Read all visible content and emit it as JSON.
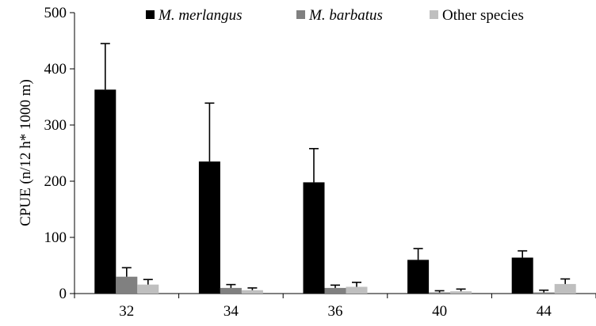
{
  "chart_data": {
    "type": "bar",
    "title": "",
    "xlabel": "",
    "ylabel": "CPUE (n/12 h* 1000 m)",
    "categories": [
      "32",
      "34",
      "36",
      "40",
      "44"
    ],
    "ylim": [
      0,
      500
    ],
    "yticks": [
      0,
      100,
      200,
      300,
      400,
      500
    ],
    "grid": false,
    "legend_position": "top",
    "series": [
      {
        "name": "M. merlangus",
        "name_italic": true,
        "color": "#000000",
        "values": [
          363,
          235,
          198,
          60,
          64
        ],
        "errors": [
          82,
          104,
          60,
          20,
          12
        ]
      },
      {
        "name": "M. barbatus",
        "name_italic": true,
        "color": "#808080",
        "values": [
          30,
          10,
          10,
          2,
          2
        ],
        "errors": [
          16,
          6,
          5,
          3,
          4
        ]
      },
      {
        "name": "Other species",
        "name_italic": false,
        "color": "#bfbfbf",
        "values": [
          16,
          6,
          12,
          4,
          17
        ],
        "errors": [
          9,
          4,
          8,
          4,
          9
        ]
      }
    ]
  }
}
